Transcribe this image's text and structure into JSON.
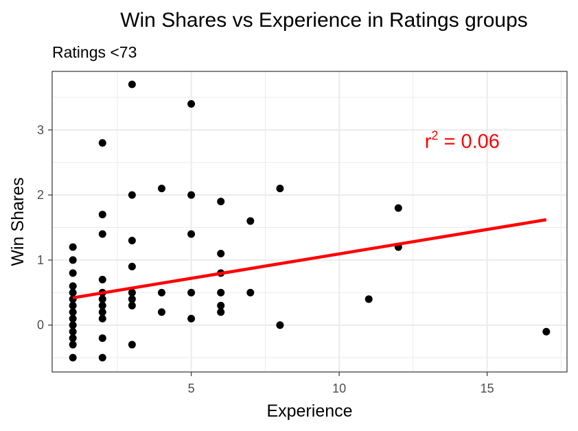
{
  "chart_data": {
    "type": "scatter",
    "title": "Win Shares vs Experience in Ratings groups",
    "subtitle": "Ratings <73",
    "xlabel": "Experience",
    "ylabel": "Win Shares",
    "xlim": [
      0.3,
      17.7
    ],
    "ylim": [
      -0.72,
      3.9
    ],
    "x_ticks": [
      5,
      10,
      15
    ],
    "x_tick_labels": [
      "5",
      "10",
      "15"
    ],
    "y_ticks": [
      0,
      1,
      2,
      3
    ],
    "y_tick_labels": [
      "0",
      "1",
      "2",
      "3"
    ],
    "grid": true,
    "colors": {
      "points": "#000000",
      "fit_line": "#ff0000",
      "annotation": "#ff0000",
      "grid": "#ebebeb",
      "panel_border": "#333333"
    },
    "points": [
      {
        "x": 1,
        "y": 1.2
      },
      {
        "x": 1,
        "y": 1.0
      },
      {
        "x": 1,
        "y": 0.8
      },
      {
        "x": 1,
        "y": 0.6
      },
      {
        "x": 1,
        "y": 0.5
      },
      {
        "x": 1,
        "y": 0.4
      },
      {
        "x": 1,
        "y": 0.3
      },
      {
        "x": 1,
        "y": 0.2
      },
      {
        "x": 1,
        "y": 0.1
      },
      {
        "x": 1,
        "y": 0.0
      },
      {
        "x": 1,
        "y": -0.1
      },
      {
        "x": 1,
        "y": -0.2
      },
      {
        "x": 1,
        "y": -0.3
      },
      {
        "x": 1,
        "y": -0.5
      },
      {
        "x": 2,
        "y": 2.8
      },
      {
        "x": 2,
        "y": 1.7
      },
      {
        "x": 2,
        "y": 1.4
      },
      {
        "x": 2,
        "y": 0.7
      },
      {
        "x": 2,
        "y": 0.5
      },
      {
        "x": 2,
        "y": 0.4
      },
      {
        "x": 2,
        "y": 0.3
      },
      {
        "x": 2,
        "y": 0.2
      },
      {
        "x": 2,
        "y": 0.1
      },
      {
        "x": 2,
        "y": -0.2
      },
      {
        "x": 2,
        "y": -0.5
      },
      {
        "x": 3,
        "y": 3.7
      },
      {
        "x": 3,
        "y": 2.0
      },
      {
        "x": 3,
        "y": 1.3
      },
      {
        "x": 3,
        "y": 0.9
      },
      {
        "x": 3,
        "y": 0.5
      },
      {
        "x": 3,
        "y": 0.4
      },
      {
        "x": 3,
        "y": 0.3
      },
      {
        "x": 3,
        "y": -0.3
      },
      {
        "x": 4,
        "y": 2.1
      },
      {
        "x": 4,
        "y": 0.5
      },
      {
        "x": 4,
        "y": 0.2
      },
      {
        "x": 5,
        "y": 3.4
      },
      {
        "x": 5,
        "y": 2.0
      },
      {
        "x": 5,
        "y": 1.4
      },
      {
        "x": 5,
        "y": 0.5
      },
      {
        "x": 5,
        "y": 0.1
      },
      {
        "x": 6,
        "y": 1.9
      },
      {
        "x": 6,
        "y": 1.1
      },
      {
        "x": 6,
        "y": 0.8
      },
      {
        "x": 6,
        "y": 0.5
      },
      {
        "x": 6,
        "y": 0.3
      },
      {
        "x": 6,
        "y": 0.2
      },
      {
        "x": 7,
        "y": 1.6
      },
      {
        "x": 7,
        "y": 0.5
      },
      {
        "x": 8,
        "y": 2.1
      },
      {
        "x": 8,
        "y": 0.0
      },
      {
        "x": 11,
        "y": 0.4
      },
      {
        "x": 12,
        "y": 1.8
      },
      {
        "x": 12,
        "y": 1.2
      },
      {
        "x": 17,
        "y": -0.1
      }
    ],
    "fit_line": {
      "x": [
        1,
        17
      ],
      "y": [
        0.42,
        1.62
      ]
    },
    "annotation": {
      "base": "r",
      "sup": "2",
      "rest": " = 0.06",
      "x": 14.9,
      "y": 2.83
    }
  }
}
